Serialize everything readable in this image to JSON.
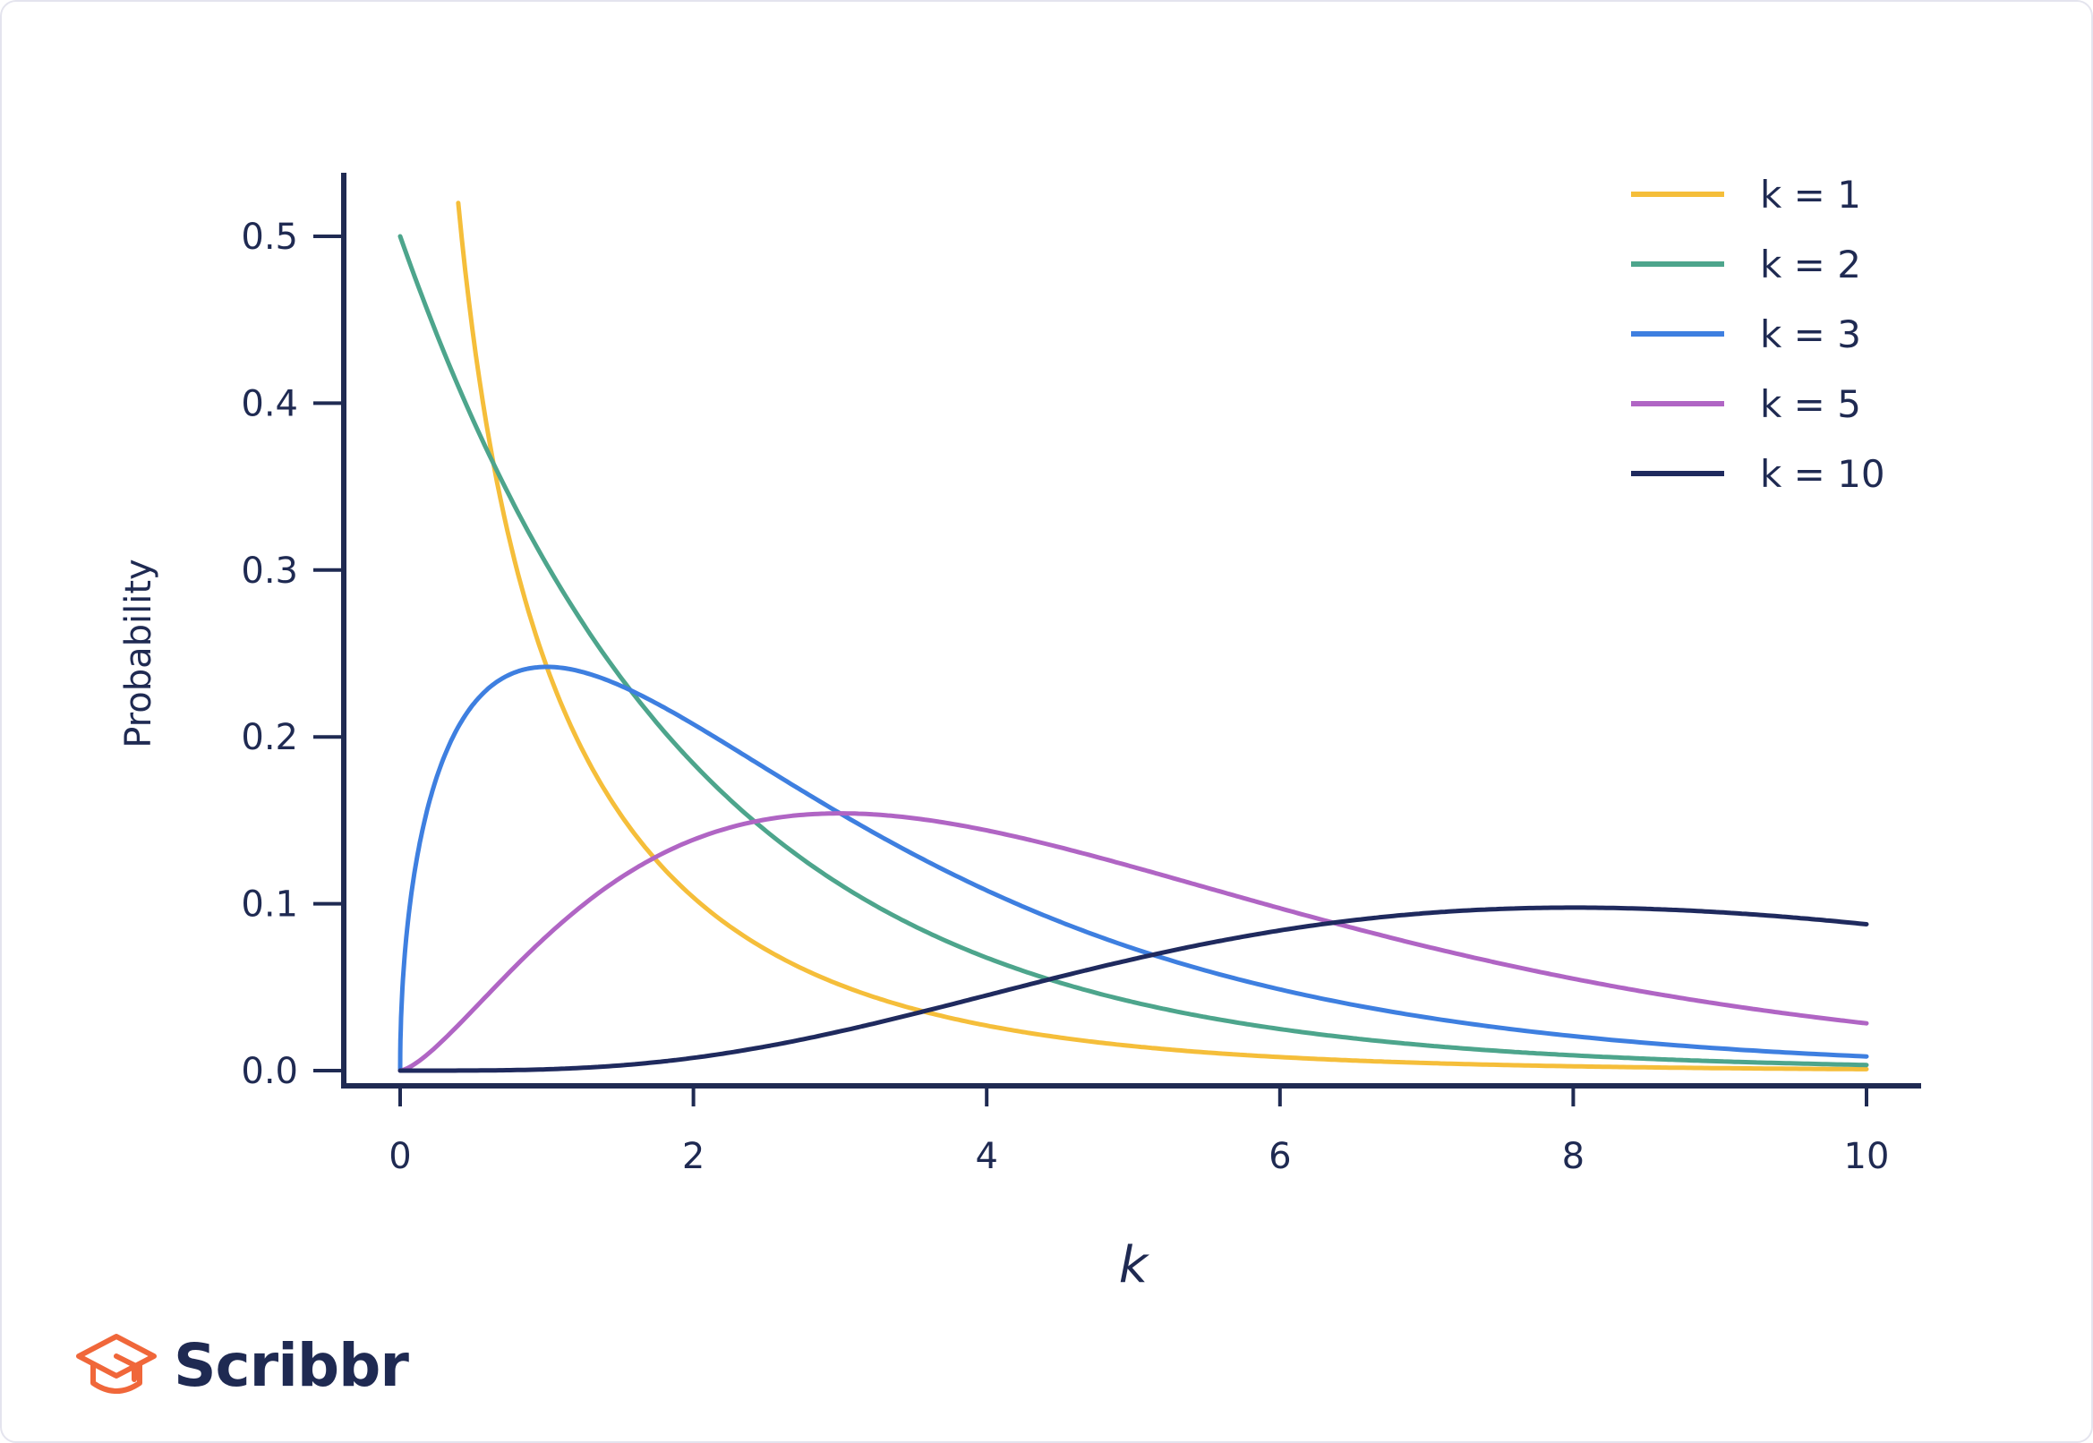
{
  "chart_data": {
    "type": "line",
    "xlabel": "k",
    "ylabel": "Probability",
    "xlim": [
      0,
      10
    ],
    "ylim": [
      0,
      0.5
    ],
    "xticks": [
      "0",
      "2",
      "4",
      "6",
      "8",
      "10"
    ],
    "yticks": [
      "0.0",
      "0.1",
      "0.2",
      "0.3",
      "0.4",
      "0.5"
    ],
    "grid": false,
    "legend_position": "top-right",
    "series": [
      {
        "name": "k = 1",
        "color": "#f5be3a",
        "dof": 1
      },
      {
        "name": "k = 2",
        "color": "#4da58c",
        "dof": 2
      },
      {
        "name": "k = 3",
        "color": "#3e7fe0",
        "dof": 3
      },
      {
        "name": "k = 5",
        "color": "#b065c4",
        "dof": 5
      },
      {
        "name": "k = 10",
        "color": "#1f2a5e",
        "dof": 10
      }
    ]
  },
  "brand": {
    "name": "Scribbr",
    "accent": "#f0673a",
    "ink": "#1f2a52"
  }
}
